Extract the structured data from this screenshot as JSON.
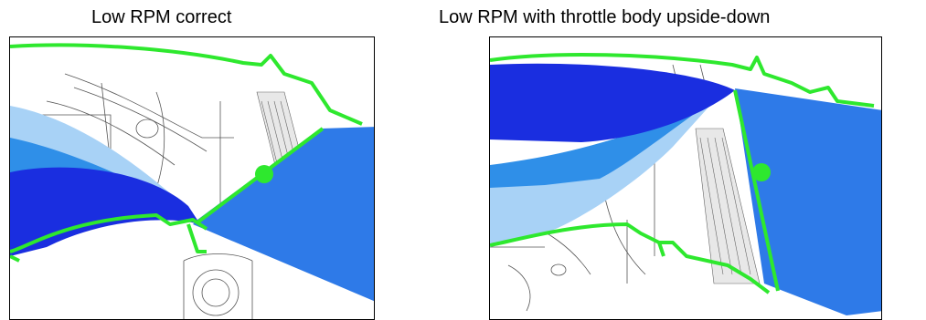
{
  "captions": {
    "left": "Low RPM correct",
    "right": "Low RPM with throttle body upside-down"
  },
  "colors": {
    "housing_green": "#2ee82e",
    "flow_dark_blue": "#1a2ee0",
    "flow_mid_blue": "#2f8fe8",
    "flow_light_blue": "#a8d2f6",
    "flow_main_blue": "#2e7ae8",
    "sketch_line": "#555555"
  },
  "icons": [
    "throttle-plate-pivot"
  ]
}
